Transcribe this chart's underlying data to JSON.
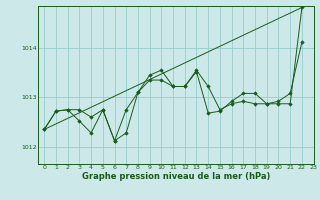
{
  "xlabel": "Graphe pression niveau de la mer (hPa)",
  "ylabel": "",
  "bg_color": "#cce8e8",
  "plot_bg_color": "#cce8e8",
  "grid_color": "#99cccc",
  "line_color": "#1a5c1a",
  "marker_color": "#1a5c1a",
  "xlim": [
    -0.5,
    23.0
  ],
  "ylim": [
    1011.65,
    1014.85
  ],
  "yticks": [
    1012,
    1013,
    1014
  ],
  "xticks": [
    0,
    1,
    2,
    3,
    4,
    5,
    6,
    7,
    8,
    9,
    10,
    11,
    12,
    13,
    14,
    15,
    16,
    17,
    18,
    19,
    20,
    21,
    22,
    23
  ],
  "series": [
    {
      "x": [
        0,
        1,
        2,
        3,
        4,
        5,
        6,
        7,
        8,
        9,
        10,
        11,
        12,
        13,
        14,
        15,
        16,
        17,
        18,
        19,
        20,
        21,
        22
      ],
      "y": [
        1012.35,
        1012.72,
        1012.75,
        1012.75,
        1012.6,
        1012.75,
        1012.12,
        1012.75,
        1013.1,
        1013.45,
        1013.55,
        1013.22,
        1013.22,
        1013.55,
        1013.22,
        1012.75,
        1012.87,
        1012.92,
        1012.87,
        1012.87,
        1012.87,
        1012.87,
        1014.82
      ]
    },
    {
      "x": [
        0,
        1,
        2,
        3,
        4,
        5,
        6,
        7,
        8,
        9,
        10,
        11,
        12,
        13,
        14,
        15,
        16,
        17,
        18,
        19,
        20,
        21,
        22
      ],
      "y": [
        1012.35,
        1012.72,
        1012.75,
        1012.52,
        1012.28,
        1012.75,
        1012.12,
        1012.28,
        1013.1,
        1013.35,
        1013.35,
        1013.22,
        1013.22,
        1013.52,
        1012.68,
        1012.72,
        1012.92,
        1013.08,
        1013.08,
        1012.87,
        1012.92,
        1013.08,
        1014.12
      ]
    },
    {
      "x": [
        0,
        22
      ],
      "y": [
        1012.35,
        1014.82
      ]
    }
  ]
}
